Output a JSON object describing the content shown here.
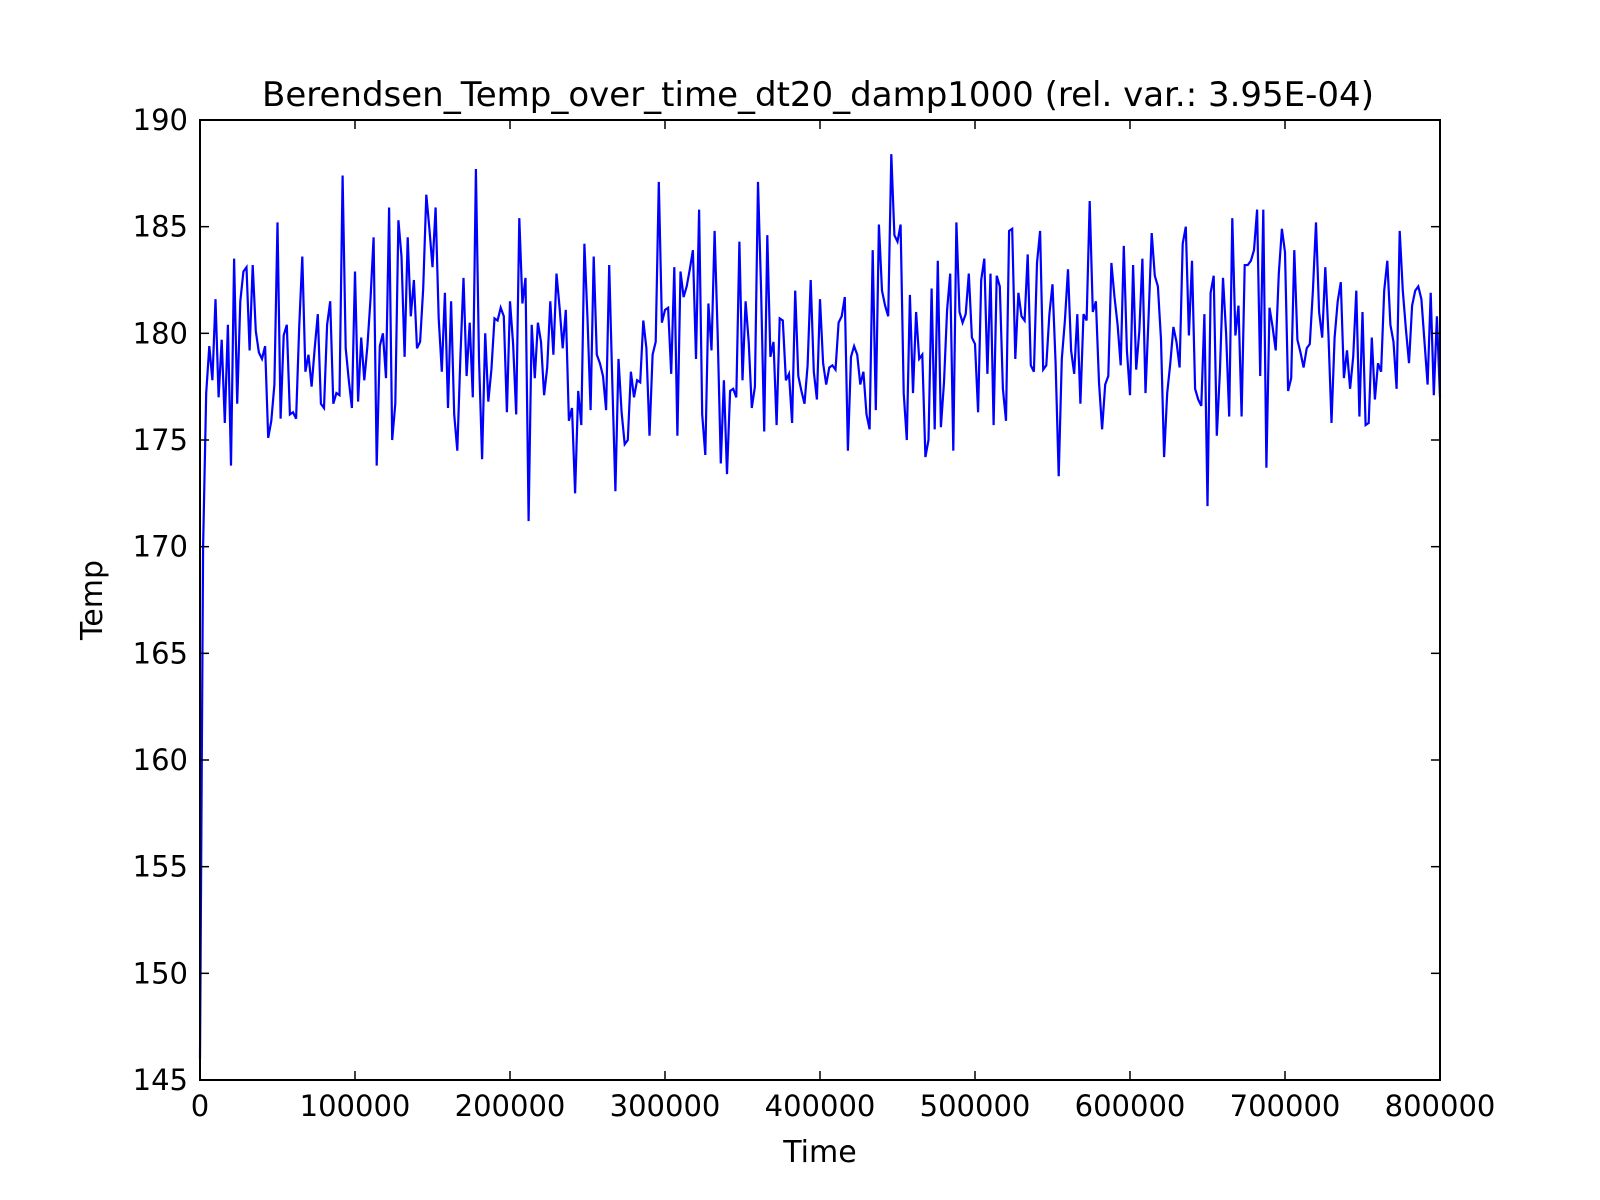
{
  "chart_data": {
    "type": "line",
    "title": "Berendsen_Temp_over_time_dt20_damp1000 (rel. var.: 3.95E-04)",
    "xlabel": "Time",
    "ylabel": "Temp",
    "xlim": [
      0,
      800000
    ],
    "ylim": [
      145,
      190
    ],
    "xticks": [
      0,
      100000,
      200000,
      300000,
      400000,
      500000,
      600000,
      700000,
      800000
    ],
    "yticks": [
      145,
      150,
      155,
      160,
      165,
      170,
      175,
      180,
      185,
      190
    ],
    "grid": false,
    "legend": "none",
    "series": [
      {
        "color": "#0000ff",
        "x": [
          0,
          2000,
          4000,
          6000,
          8000,
          10000,
          12000,
          14000,
          16000,
          18000,
          20000,
          22000,
          24000,
          26000,
          28000,
          30000,
          32000,
          34000,
          36000,
          38000,
          40000,
          42000,
          44000,
          46000,
          48000,
          50000,
          52000,
          54000,
          56000,
          58000,
          60000,
          62000,
          64000,
          66000,
          68000,
          70000,
          72000,
          74000,
          76000,
          78000,
          80000,
          82000,
          84000,
          86000,
          88000,
          90000,
          92000,
          94000,
          96000,
          98000,
          100000,
          102000,
          104000,
          106000,
          108000,
          110000,
          112000,
          114000,
          116000,
          118000,
          120000,
          122000,
          124000,
          126000,
          128000,
          130000,
          132000,
          134000,
          136000,
          138000,
          140000,
          142000,
          144000,
          146000,
          148000,
          150000,
          152000,
          154000,
          156000,
          158000,
          160000,
          162000,
          164000,
          166000,
          168000,
          170000,
          172000,
          174000,
          176000,
          178000,
          180000,
          182000,
          184000,
          186000,
          188000,
          190000,
          192000,
          194000,
          196000,
          198000,
          200000,
          202000,
          204000,
          206000,
          208000,
          210000,
          212000,
          214000,
          216000,
          218000,
          220000,
          222000,
          224000,
          226000,
          228000,
          230000,
          232000,
          234000,
          236000,
          238000,
          240000,
          242000,
          244000,
          246000,
          248000,
          250000,
          252000,
          254000,
          256000,
          258000,
          260000,
          262000,
          264000,
          266000,
          268000,
          270000,
          272000,
          274000,
          276000,
          278000,
          280000,
          282000,
          284000,
          286000,
          288000,
          290000,
          292000,
          294000,
          296000,
          298000,
          300000,
          302000,
          304000,
          306000,
          308000,
          310000,
          312000,
          314000,
          316000,
          318000,
          320000,
          322000,
          324000,
          326000,
          328000,
          330000,
          332000,
          334000,
          336000,
          338000,
          340000,
          342000,
          344000,
          346000,
          348000,
          350000,
          352000,
          354000,
          356000,
          358000,
          360000,
          362000,
          364000,
          366000,
          368000,
          370000,
          372000,
          374000,
          376000,
          378000,
          380000,
          382000,
          384000,
          386000,
          388000,
          390000,
          392000,
          394000,
          396000,
          398000,
          400000,
          402000,
          404000,
          406000,
          408000,
          410000,
          412000,
          414000,
          416000,
          418000,
          420000,
          422000,
          424000,
          426000,
          428000,
          430000,
          432000,
          434000,
          436000,
          438000,
          440000,
          442000,
          444000,
          446000,
          448000,
          450000,
          452000,
          454000,
          456000,
          458000,
          460000,
          462000,
          464000,
          466000,
          468000,
          470000,
          472000,
          474000,
          476000,
          478000,
          480000,
          482000,
          484000,
          486000,
          488000,
          490000,
          492000,
          494000,
          496000,
          498000,
          500000,
          502000,
          504000,
          506000,
          508000,
          510000,
          512000,
          514000,
          516000,
          518000,
          520000,
          522000,
          524000,
          526000,
          528000,
          530000,
          532000,
          534000,
          536000,
          538000,
          540000,
          542000,
          544000,
          546000,
          548000,
          550000,
          552000,
          554000,
          556000,
          558000,
          560000,
          562000,
          564000,
          566000,
          568000,
          570000,
          572000,
          574000,
          576000,
          578000,
          580000,
          582000,
          584000,
          586000,
          588000,
          590000,
          592000,
          594000,
          596000,
          598000,
          600000,
          602000,
          604000,
          606000,
          608000,
          610000,
          612000,
          614000,
          616000,
          618000,
          620000,
          622000,
          624000,
          626000,
          628000,
          630000,
          632000,
          634000,
          636000,
          638000,
          640000,
          642000,
          644000,
          646000,
          648000,
          650000,
          652000,
          654000,
          656000,
          658000,
          660000,
          662000,
          664000,
          666000,
          668000,
          670000,
          672000,
          674000,
          676000,
          678000,
          680000,
          682000,
          684000,
          686000,
          688000,
          690000,
          692000,
          694000,
          696000,
          698000,
          700000,
          702000,
          704000,
          706000,
          708000,
          710000,
          712000,
          714000,
          716000,
          718000,
          720000,
          722000,
          724000,
          726000,
          728000,
          730000,
          732000,
          734000,
          736000,
          738000,
          740000,
          742000,
          744000,
          746000,
          748000,
          750000,
          752000,
          754000,
          756000,
          758000,
          760000,
          762000,
          764000,
          766000,
          768000,
          770000,
          772000,
          774000,
          776000,
          778000,
          780000,
          782000,
          784000,
          786000,
          788000,
          790000,
          792000,
          794000,
          796000,
          798000,
          800000
        ],
        "y": [
          146.0,
          170.0,
          177.2,
          179.4,
          177.8,
          181.6,
          177.0,
          179.7,
          175.8,
          180.4,
          173.8,
          183.5,
          176.7,
          181.5,
          182.9,
          183.1,
          179.2,
          183.2,
          180.1,
          179.1,
          178.8,
          179.4,
          175.1,
          175.9,
          177.6,
          185.2,
          176.0,
          179.9,
          180.4,
          176.2,
          176.3,
          176.0,
          180.3,
          183.6,
          178.2,
          179.0,
          177.5,
          179.3,
          180.9,
          176.7,
          176.5,
          180.4,
          181.5,
          176.7,
          177.2,
          177.1,
          187.4,
          179.3,
          177.8,
          176.5,
          182.9,
          176.8,
          179.8,
          177.8,
          179.4,
          181.6,
          184.5,
          173.8,
          179.4,
          180.0,
          177.9,
          185.9,
          175.0,
          176.7,
          185.3,
          183.6,
          178.9,
          184.5,
          180.8,
          182.5,
          179.3,
          179.6,
          182.1,
          186.5,
          184.9,
          183.1,
          185.9,
          180.7,
          178.2,
          181.9,
          176.5,
          181.5,
          176.2,
          174.5,
          178.9,
          182.6,
          178.0,
          180.5,
          177.0,
          187.7,
          178.8,
          174.1,
          180.0,
          176.8,
          178.3,
          180.7,
          180.6,
          181.2,
          180.8,
          176.3,
          181.5,
          179.5,
          176.2,
          185.4,
          181.4,
          182.6,
          171.2,
          180.4,
          177.9,
          180.5,
          179.6,
          177.1,
          178.4,
          181.5,
          179.0,
          182.8,
          181.2,
          179.3,
          181.1,
          175.9,
          176.5,
          172.5,
          177.3,
          175.7,
          184.2,
          180.7,
          176.4,
          183.6,
          179.0,
          178.6,
          178.0,
          176.4,
          183.2,
          177.7,
          172.6,
          178.8,
          176.3,
          174.8,
          175.0,
          178.2,
          177.0,
          177.8,
          177.7,
          180.6,
          179.3,
          175.2,
          179.0,
          179.6,
          187.1,
          180.5,
          181.1,
          181.2,
          178.1,
          183.1,
          175.2,
          182.9,
          181.7,
          182.2,
          183.0,
          183.9,
          178.8,
          185.8,
          176.2,
          174.3,
          181.4,
          179.2,
          184.8,
          179.9,
          173.9,
          177.8,
          173.4,
          177.3,
          177.4,
          177.0,
          184.3,
          177.8,
          181.5,
          179.6,
          176.5,
          177.5,
          187.1,
          182.0,
          175.4,
          184.6,
          178.9,
          179.6,
          175.7,
          180.7,
          180.6,
          177.8,
          178.1,
          175.8,
          182.0,
          178.0,
          177.3,
          176.7,
          178.5,
          182.5,
          178.2,
          176.9,
          181.6,
          178.6,
          177.6,
          178.4,
          178.5,
          178.3,
          180.5,
          180.8,
          181.7,
          174.5,
          178.9,
          179.4,
          179.0,
          177.6,
          178.2,
          176.2,
          175.5,
          183.9,
          176.4,
          185.1,
          182.0,
          181.3,
          180.8,
          188.4,
          184.6,
          184.3,
          185.1,
          177.2,
          175.0,
          181.8,
          177.2,
          181.0,
          178.8,
          179.0,
          174.2,
          175.0,
          182.1,
          175.5,
          183.4,
          175.6,
          177.7,
          181.1,
          182.8,
          174.5,
          185.2,
          181.0,
          180.5,
          180.9,
          182.8,
          179.8,
          179.5,
          176.3,
          182.5,
          183.5,
          178.1,
          182.8,
          175.7,
          182.7,
          182.2,
          177.4,
          175.9,
          184.8,
          184.9,
          178.8,
          181.9,
          180.8,
          180.6,
          183.7,
          178.5,
          178.2,
          183.3,
          184.8,
          178.3,
          178.5,
          180.9,
          182.3,
          178.6,
          173.3,
          178.8,
          180.6,
          183.0,
          179.2,
          178.1,
          180.9,
          176.7,
          180.9,
          180.6,
          186.2,
          181.0,
          181.5,
          177.7,
          175.5,
          177.6,
          178.0,
          183.3,
          181.7,
          180.4,
          178.5,
          184.1,
          179.2,
          177.1,
          183.2,
          178.3,
          180.1,
          183.5,
          177.2,
          180.8,
          184.7,
          182.7,
          182.2,
          179.7,
          174.2,
          177.2,
          178.6,
          180.3,
          179.6,
          178.4,
          184.2,
          185.0,
          179.9,
          183.4,
          177.4,
          176.9,
          176.6,
          180.9,
          171.9,
          181.9,
          182.7,
          175.2,
          178.2,
          182.6,
          180.0,
          176.1,
          185.4,
          179.9,
          181.3,
          176.1,
          183.2,
          183.2,
          183.4,
          183.9,
          185.8,
          178.0,
          185.8,
          173.7,
          181.2,
          180.3,
          179.2,
          182.8,
          184.9,
          183.8,
          177.3,
          177.9,
          183.9,
          179.7,
          179.1,
          178.4,
          179.3,
          179.5,
          182.0,
          185.2,
          181.0,
          179.8,
          183.1,
          180.0,
          175.8,
          179.8,
          181.5,
          182.4,
          177.9,
          179.2,
          177.4,
          178.9,
          182.0,
          176.1,
          181.0,
          175.7,
          175.8,
          179.8,
          176.9,
          178.6,
          178.2,
          182.0,
          183.4,
          180.4,
          179.6,
          177.4,
          184.8,
          182.0,
          180.2,
          178.6,
          181.3,
          182.0,
          182.2,
          181.6,
          179.6,
          177.6,
          181.9,
          177.1,
          180.8,
          177.0
        ]
      }
    ]
  }
}
